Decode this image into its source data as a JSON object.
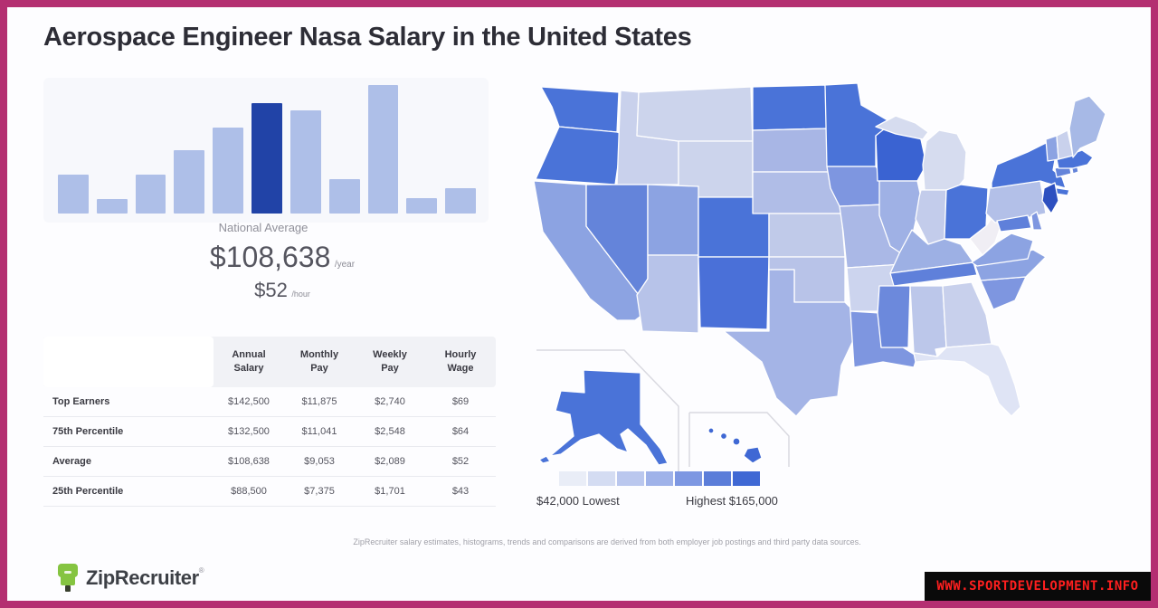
{
  "header": {
    "title": "Aerospace Engineer Nasa Salary in the United States"
  },
  "chart_data": {
    "type": "bar",
    "title": "Salary distribution histogram",
    "categories": [
      "",
      "",
      "",
      "",
      "",
      "National Average",
      "",
      "",
      "",
      "",
      ""
    ],
    "values": [
      42,
      16,
      42,
      69,
      93,
      119,
      112,
      37,
      139,
      17,
      27
    ],
    "highlight_index": 5,
    "highlight_label": "National Average",
    "bar_color": "#aebfe8",
    "highlight_color": "#2143a7",
    "xlabel": "",
    "ylabel": "",
    "grid": false,
    "axes_visible": false
  },
  "national_average": {
    "label": "National Average",
    "annual_value": "$108,638",
    "annual_unit": "/year",
    "hourly_value": "$52",
    "hourly_unit": "/hour"
  },
  "salary_table": {
    "columns": [
      {
        "line1": "Annual",
        "line2": "Salary"
      },
      {
        "line1": "Monthly",
        "line2": "Pay"
      },
      {
        "line1": "Weekly",
        "line2": "Pay"
      },
      {
        "line1": "Hourly",
        "line2": "Wage"
      }
    ],
    "rows": [
      {
        "label": "Top Earners",
        "annual": "$142,500",
        "monthly": "$11,875",
        "weekly": "$2,740",
        "hourly": "$69"
      },
      {
        "label": "75th Percentile",
        "annual": "$132,500",
        "monthly": "$11,041",
        "weekly": "$2,548",
        "hourly": "$64"
      },
      {
        "label": "Average",
        "annual": "$108,638",
        "monthly": "$9,053",
        "weekly": "$2,089",
        "hourly": "$52"
      },
      {
        "label": "25th Percentile",
        "annual": "$88,500",
        "monthly": "$7,375",
        "weekly": "$1,701",
        "hourly": "$43"
      }
    ]
  },
  "map": {
    "legend": {
      "min_label": "$42,000 Lowest",
      "max_label": "Highest $165,000",
      "colors": [
        "#e9edf7",
        "#d4dcf2",
        "#bac7ee",
        "#9fb2e9",
        "#7d97e2",
        "#5b7dd9",
        "#3f68d4"
      ]
    },
    "states": {
      "AK": "#4a73d8",
      "AL": "#bcc7ea",
      "AR": "#ccd4ee",
      "AZ": "#b7c3e9",
      "CA": "#8ca3e2",
      "CO": "#4a73d8",
      "CT": "#6484da",
      "DE": "#7e96e0",
      "FL": "#dfe4f5",
      "GA": "#c8d0ec",
      "HI": "#3f68d4",
      "IA": "#7e96e0",
      "ID": "#c9d1ec",
      "IL": "#9fb1e5",
      "IN": "#c3cceb",
      "KS": "#c0cae9",
      "KY": "#9db0e4",
      "LA": "#7e96e0",
      "MA": "#4a73d8",
      "MD": "#5f80da",
      "ME": "#a7b9e6",
      "MI": "#d6dcef",
      "MN": "#4a73d8",
      "MO": "#aab8e6",
      "MS": "#6c89dc",
      "MT": "#ccd4ec",
      "NC": "#8ca3e2",
      "ND": "#4a73d8",
      "NE": "#b0bde7",
      "NH": "#c9d1ec",
      "NJ": "#2d50c0",
      "NM": "#4a70d8",
      "NV": "#6484da",
      "NY": "#4a73d8",
      "OH": "#4a73d8",
      "OK": "#b8c3e8",
      "OR": "#4a73d8",
      "PA": "#b3c0e8",
      "RI": "#6484da",
      "SC": "#7e96e0",
      "SD": "#a8b6e5",
      "TN": "#5f80da",
      "TX": "#a4b4e6",
      "UT": "#8ca3e2",
      "VA": "#8ca3e2",
      "VT": "#8ca3e2",
      "WA": "#4a73d8",
      "WI": "#3a63d2",
      "WV": "#f0eef4",
      "WY": "#ccd4ec"
    }
  },
  "footer": {
    "disclaimer": "ZipRecruiter salary estimates, histograms, trends and comparisons are derived from both employer job postings and third party data sources.",
    "logo_text": "ZipRecruiter",
    "logo_reg": "®"
  },
  "watermark": {
    "text": "WWW.SPORTDEVELOPMENT.INFO"
  },
  "colors": {
    "frame_border": "#b42f71",
    "card_bg": "#fdfdff",
    "watermark_red": "#ff1f1f",
    "logo_green": "#85c441"
  }
}
